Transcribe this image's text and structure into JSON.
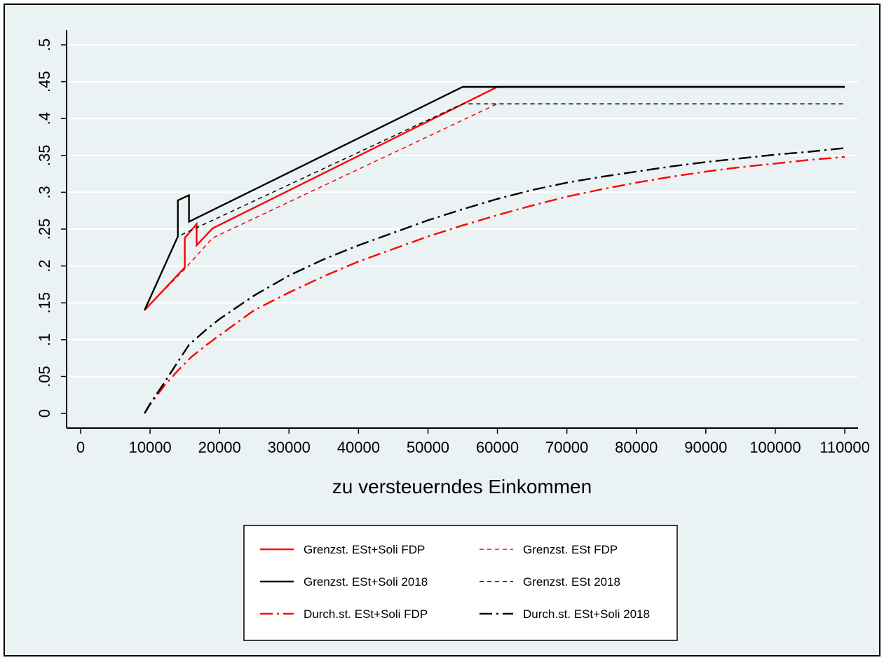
{
  "chart_data": {
    "type": "line",
    "title": "",
    "xlabel": "zu versteuerndes Einkommen",
    "ylabel": "",
    "xlim": [
      0,
      110000
    ],
    "ylim": [
      0,
      0.5
    ],
    "xticks": [
      0,
      10000,
      20000,
      30000,
      40000,
      50000,
      60000,
      70000,
      80000,
      90000,
      100000,
      110000
    ],
    "xtick_labels": [
      "0",
      "10000",
      "20000",
      "30000",
      "40000",
      "50000",
      "60000",
      "70000",
      "80000",
      "90000",
      "100000",
      "110000"
    ],
    "yticks": [
      0,
      0.05,
      0.1,
      0.15,
      0.2,
      0.25,
      0.3,
      0.35,
      0.4,
      0.45,
      0.5
    ],
    "ytick_labels": [
      "0",
      ".05",
      ".1",
      ".15",
      ".2",
      ".25",
      ".3",
      ".35",
      ".4",
      ".45",
      ".5"
    ],
    "grid": true,
    "legend_position": "bottom-center",
    "background": "#eaf2f3",
    "series": [
      {
        "name": "Grenzst. ESt+Soli FDP",
        "color": "#ff0000",
        "style": "solid",
        "x": [
          9200,
          15000,
          15000,
          16700,
          16700,
          19000,
          60000,
          110000
        ],
        "y": [
          0.14,
          0.198,
          0.238,
          0.257,
          0.228,
          0.251,
          0.443,
          0.443
        ]
      },
      {
        "name": "Grenzst. ESt FDP",
        "color": "#ff0000",
        "style": "dashed",
        "x": [
          9200,
          15000,
          19000,
          60000,
          110000
        ],
        "y": [
          0.14,
          0.196,
          0.238,
          0.42,
          0.42
        ]
      },
      {
        "name": "Grenzst. ESt+Soli 2018",
        "color": "#000000",
        "style": "solid",
        "x": [
          9200,
          14000,
          14000,
          15600,
          15600,
          55000,
          110000
        ],
        "y": [
          0.14,
          0.24,
          0.289,
          0.296,
          0.26,
          0.443,
          0.443
        ]
      },
      {
        "name": "Grenzst. ESt 2018",
        "color": "#000000",
        "style": "dashed",
        "x": [
          9200,
          14000,
          55000,
          110000
        ],
        "y": [
          0.14,
          0.24,
          0.42,
          0.42
        ]
      },
      {
        "name": "Durch.st. ESt+Soli FDP",
        "color": "#ff0000",
        "style": "dashdot",
        "x": [
          9200,
          10000,
          12000,
          14000,
          16000,
          18000,
          20000,
          25000,
          30000,
          35000,
          40000,
          45000,
          50000,
          55000,
          60000,
          65000,
          70000,
          75000,
          80000,
          85000,
          90000,
          95000,
          100000,
          105000,
          110000
        ],
        "y": [
          0,
          0.012,
          0.037,
          0.058,
          0.077,
          0.092,
          0.106,
          0.14,
          0.164,
          0.186,
          0.206,
          0.223,
          0.24,
          0.255,
          0.269,
          0.282,
          0.294,
          0.304,
          0.313,
          0.321,
          0.328,
          0.334,
          0.339,
          0.344,
          0.348
        ]
      },
      {
        "name": "Durch.st. ESt+Soli 2018",
        "color": "#000000",
        "style": "dashdot",
        "x": [
          9200,
          10000,
          12000,
          14000,
          15600,
          18000,
          20000,
          25000,
          30000,
          35000,
          40000,
          45000,
          50000,
          55000,
          60000,
          65000,
          70000,
          75000,
          80000,
          85000,
          90000,
          95000,
          100000,
          105000,
          110000
        ],
        "y": [
          0,
          0.013,
          0.041,
          0.07,
          0.093,
          0.113,
          0.128,
          0.16,
          0.187,
          0.209,
          0.228,
          0.245,
          0.262,
          0.277,
          0.291,
          0.303,
          0.313,
          0.321,
          0.328,
          0.335,
          0.341,
          0.346,
          0.351,
          0.355,
          0.36
        ]
      }
    ],
    "legend_order": [
      0,
      1,
      2,
      3,
      4,
      5
    ]
  }
}
